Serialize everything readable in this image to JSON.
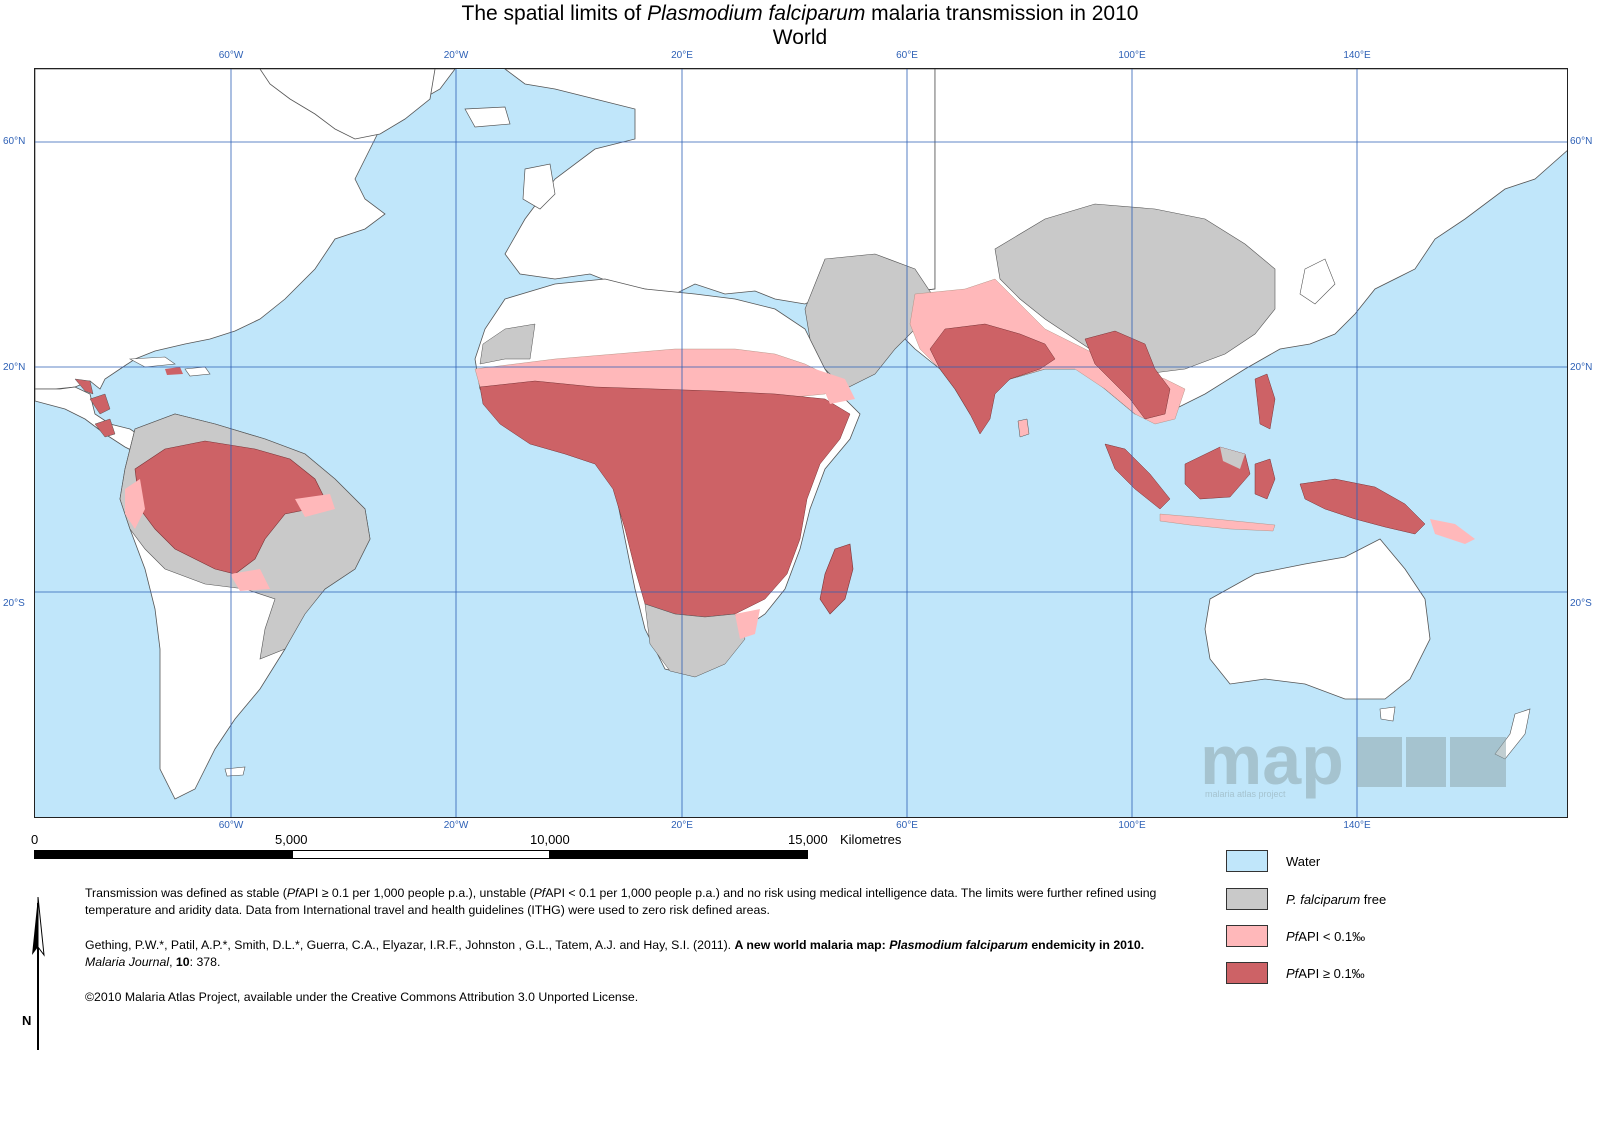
{
  "title": {
    "line1_pre": "The spatial limits of ",
    "line1_italic": "Plasmodium falciparum",
    "line1_post": " malaria transmission in 2010",
    "line2": "World"
  },
  "graticule": {
    "longitudes": [
      "60°W",
      "20°W",
      "20°E",
      "60°E",
      "100°E",
      "140°E"
    ],
    "latitudes": [
      "60°N",
      "20°N",
      "20°S"
    ]
  },
  "scale": {
    "ticks": [
      "0",
      "5,000",
      "10,000",
      "15,000"
    ],
    "unit": "Kilometres"
  },
  "legend": [
    {
      "key": "water",
      "label_pre": "",
      "label_italic": "",
      "label_post": "Water",
      "color": "#c0e6fa"
    },
    {
      "key": "free",
      "label_pre": "",
      "label_italic": "P. falciparum",
      "label_post": " free",
      "color": "#c9c9c9"
    },
    {
      "key": "unstable",
      "label_pre": "",
      "label_italic": "Pf",
      "label_post": "API < 0.1‰",
      "color": "#ffb8ba"
    },
    {
      "key": "stable",
      "label_pre": "",
      "label_italic": "Pf",
      "label_post": "API ≥ 0.1‰",
      "color": "#cd6266"
    }
  ],
  "colors": {
    "water": "#c0e6fa",
    "land_no_risk": "#ffffff",
    "free": "#c9c9c9",
    "unstable": "#ffb8ba",
    "stable": "#cd6266",
    "graticule": "#2c5fb5"
  },
  "notes": {
    "p1_a": "Transmission was defined as stable (",
    "p1_b": "Pf",
    "p1_c": "API ≥ 0.1 per 1,000 people p.a.), unstable (",
    "p1_d": "Pf",
    "p1_e": "API < 0.1 per 1,000 people p.a.) and no risk using medical intelligence data. The limits were further refined using temperature and aridity data. Data from International travel and health guidelines (ITHG) were used to zero risk defined areas.",
    "p2_a": "Gething, P.W.*, Patil, A.P.*, Smith, D.L.*, Guerra, C.A., Elyazar, I.R.F., Johnston , G.L., Tatem, A.J. and Hay, S.I. (2011). ",
    "p2_b": "A new world malaria map: ",
    "p2_c": "Plasmodium falciparum",
    "p2_d": " endemicity in 2010.",
    "p2_e": " ",
    "p2_f": "Malaria Journal",
    "p2_g": ", ",
    "p2_h": "10",
    "p2_i": ": 378.",
    "p3": "©2010 Malaria Atlas Project, available under the Creative Commons Attribution 3.0 Unported License."
  },
  "logo": {
    "text": "map",
    "subtitle": "malaria atlas project"
  },
  "north_label": "N"
}
